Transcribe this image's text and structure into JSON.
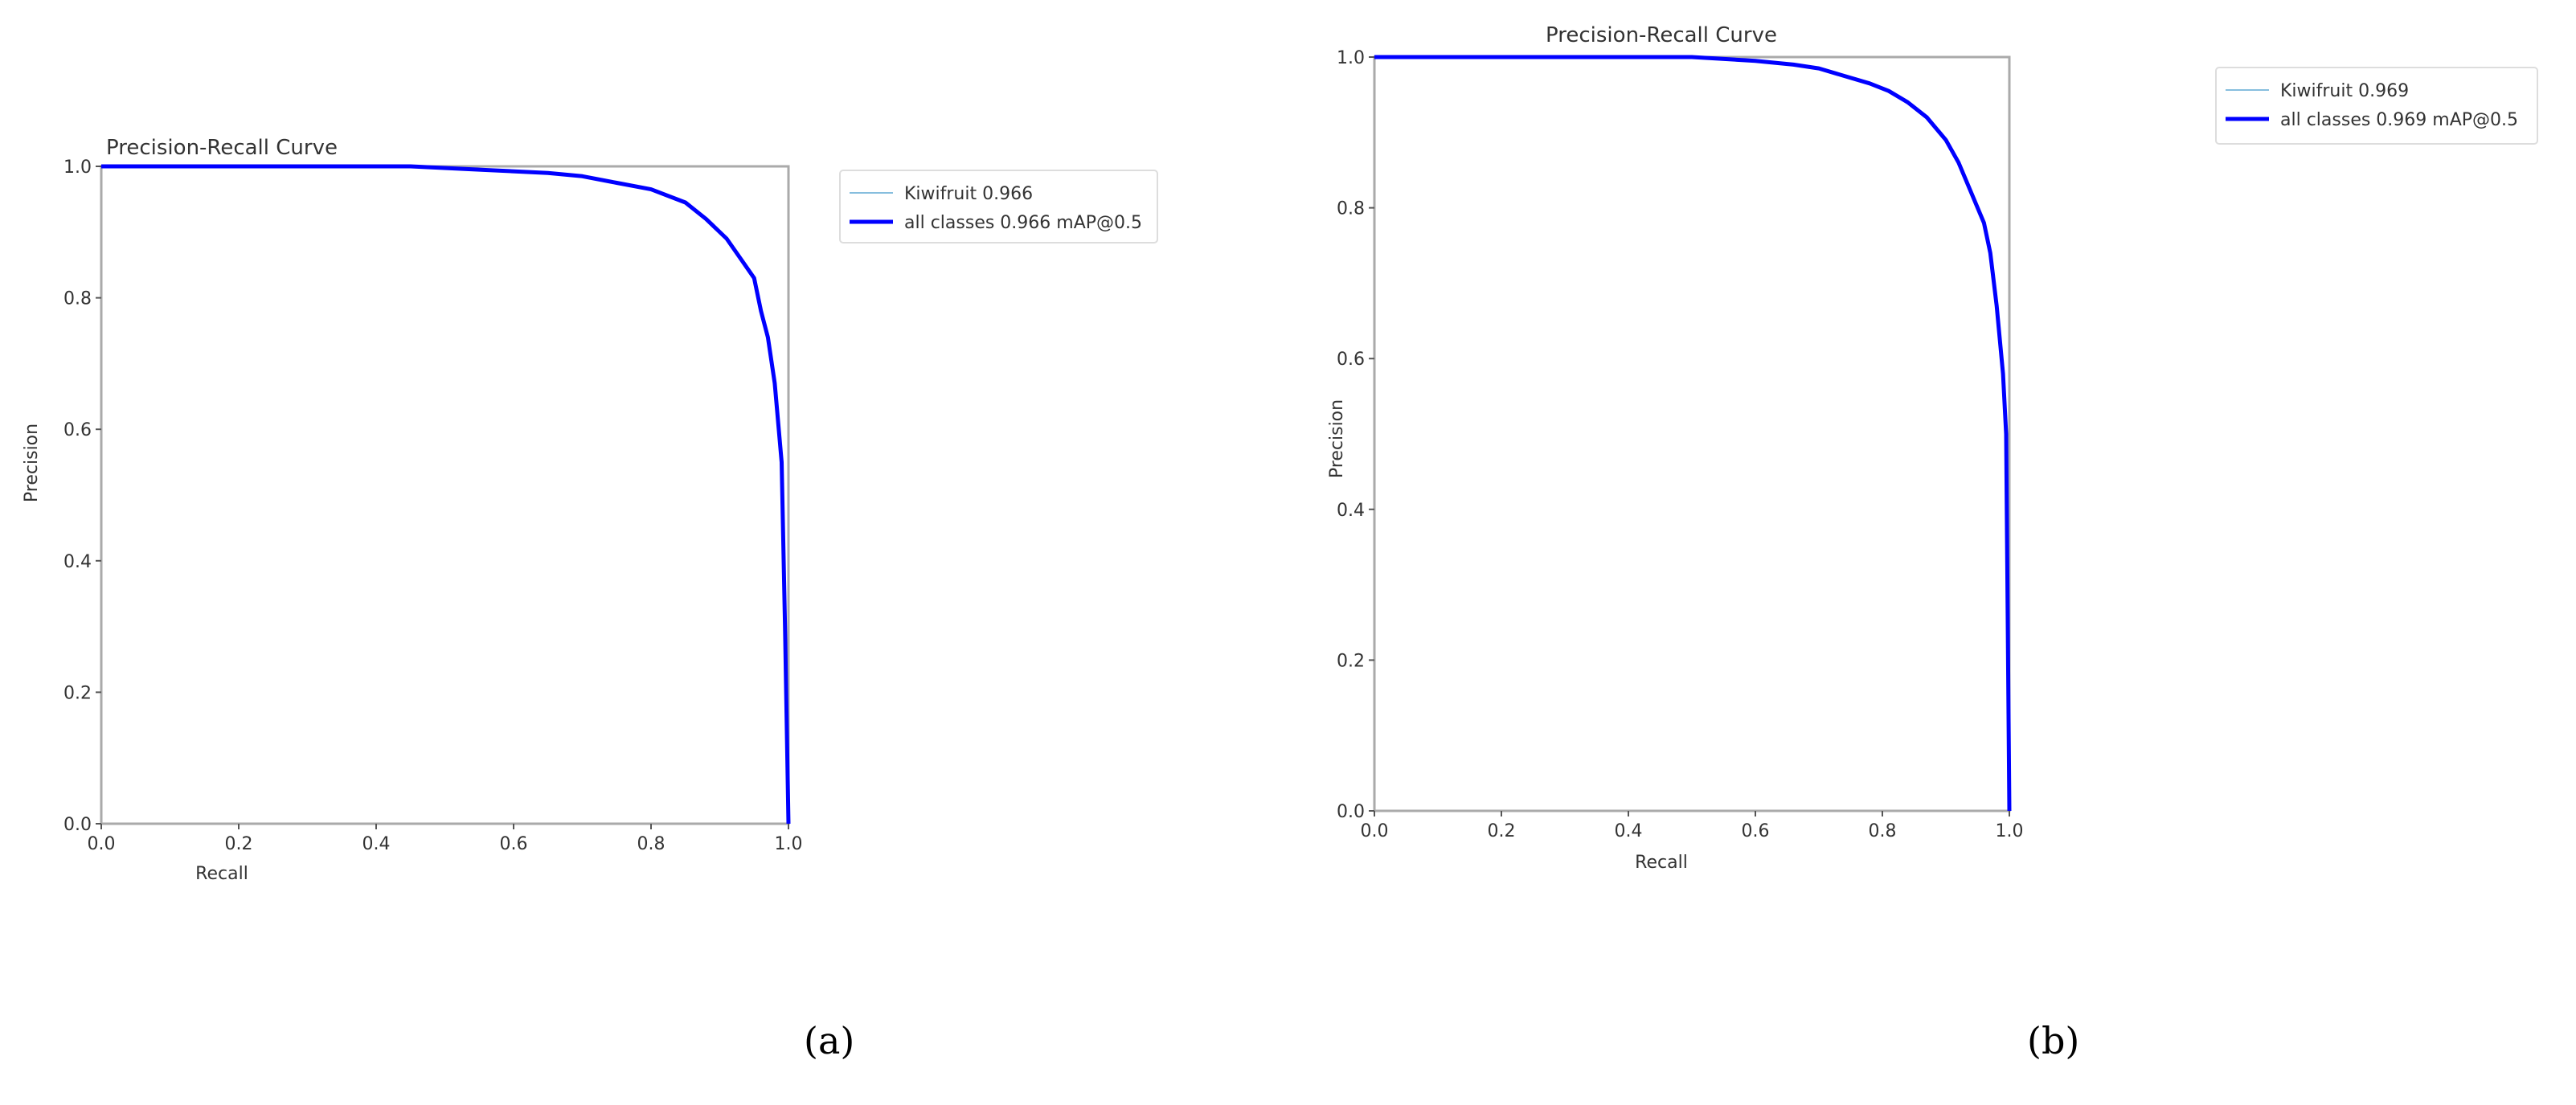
{
  "figure": {
    "captions": [
      "(a)",
      "(b)"
    ]
  },
  "panels": [
    {
      "id": "a",
      "title": "Precision-Recall Curve",
      "xlabel": "Recall",
      "ylabel": "Precision",
      "xticks": [
        "0.0",
        "0.2",
        "0.4",
        "0.6",
        "0.8",
        "1.0"
      ],
      "yticks": [
        "0.0",
        "0.2",
        "0.4",
        "0.6",
        "0.8",
        "1.0"
      ],
      "legend": [
        {
          "label": "Kiwifruit 0.966",
          "color": "#5fa8d3",
          "width": 1.5
        },
        {
          "label": "all classes 0.966 mAP@0.5",
          "color": "#0000ff",
          "width": 5
        }
      ],
      "caption": "(a)"
    },
    {
      "id": "b",
      "title": "Precision-Recall Curve",
      "xlabel": "Recall",
      "ylabel": "Precision",
      "xticks": [
        "0.0",
        "0.2",
        "0.4",
        "0.6",
        "0.8",
        "1.0"
      ],
      "yticks": [
        "0.0",
        "0.2",
        "0.4",
        "0.6",
        "0.8",
        "1.0"
      ],
      "legend": [
        {
          "label": "Kiwifruit 0.969",
          "color": "#5fa8d3",
          "width": 1.5
        },
        {
          "label": "all classes 0.969 mAP@0.5",
          "color": "#0000ff",
          "width": 5
        }
      ],
      "caption": "(b)"
    }
  ],
  "chart_data": [
    {
      "type": "line",
      "title": "Precision-Recall Curve",
      "xlabel": "Recall",
      "ylabel": "Precision",
      "xlim": [
        0,
        1
      ],
      "ylim": [
        0,
        1
      ],
      "grid": false,
      "legend_position": "outside upper right",
      "series": [
        {
          "name": "Kiwifruit 0.966",
          "color": "#5fa8d3",
          "x": [
            0.0,
            0.45,
            0.55,
            0.65,
            0.7,
            0.75,
            0.8,
            0.85,
            0.88,
            0.91,
            0.93,
            0.95,
            0.96,
            0.97,
            0.98,
            0.99,
            0.995,
            1.0
          ],
          "y": [
            1.0,
            1.0,
            0.995,
            0.99,
            0.985,
            0.975,
            0.965,
            0.945,
            0.92,
            0.89,
            0.86,
            0.83,
            0.78,
            0.74,
            0.67,
            0.55,
            0.3,
            0.0
          ]
        },
        {
          "name": "all classes 0.966 mAP@0.5",
          "color": "#0000ff",
          "x": [
            0.0,
            0.45,
            0.55,
            0.65,
            0.7,
            0.75,
            0.8,
            0.85,
            0.88,
            0.91,
            0.93,
            0.95,
            0.96,
            0.97,
            0.98,
            0.99,
            0.995,
            1.0
          ],
          "y": [
            1.0,
            1.0,
            0.995,
            0.99,
            0.985,
            0.975,
            0.965,
            0.945,
            0.92,
            0.89,
            0.86,
            0.83,
            0.78,
            0.74,
            0.67,
            0.55,
            0.3,
            0.0
          ]
        }
      ]
    },
    {
      "type": "line",
      "title": "Precision-Recall Curve",
      "xlabel": "Recall",
      "ylabel": "Precision",
      "xlim": [
        0,
        1
      ],
      "ylim": [
        0,
        1
      ],
      "grid": false,
      "legend_position": "outside upper right",
      "series": [
        {
          "name": "Kiwifruit 0.969",
          "color": "#5fa8d3",
          "x": [
            0.0,
            0.5,
            0.6,
            0.66,
            0.7,
            0.74,
            0.78,
            0.81,
            0.84,
            0.87,
            0.9,
            0.92,
            0.94,
            0.96,
            0.97,
            0.98,
            0.99,
            0.995,
            1.0
          ],
          "y": [
            1.0,
            1.0,
            0.995,
            0.99,
            0.985,
            0.975,
            0.965,
            0.955,
            0.94,
            0.92,
            0.89,
            0.86,
            0.82,
            0.78,
            0.74,
            0.67,
            0.58,
            0.5,
            0.0
          ]
        },
        {
          "name": "all classes 0.969 mAP@0.5",
          "color": "#0000ff",
          "x": [
            0.0,
            0.5,
            0.6,
            0.66,
            0.7,
            0.74,
            0.78,
            0.81,
            0.84,
            0.87,
            0.9,
            0.92,
            0.94,
            0.96,
            0.97,
            0.98,
            0.99,
            0.995,
            1.0
          ],
          "y": [
            1.0,
            1.0,
            0.995,
            0.99,
            0.985,
            0.975,
            0.965,
            0.955,
            0.94,
            0.92,
            0.89,
            0.86,
            0.82,
            0.78,
            0.74,
            0.67,
            0.58,
            0.5,
            0.0
          ]
        }
      ]
    }
  ]
}
